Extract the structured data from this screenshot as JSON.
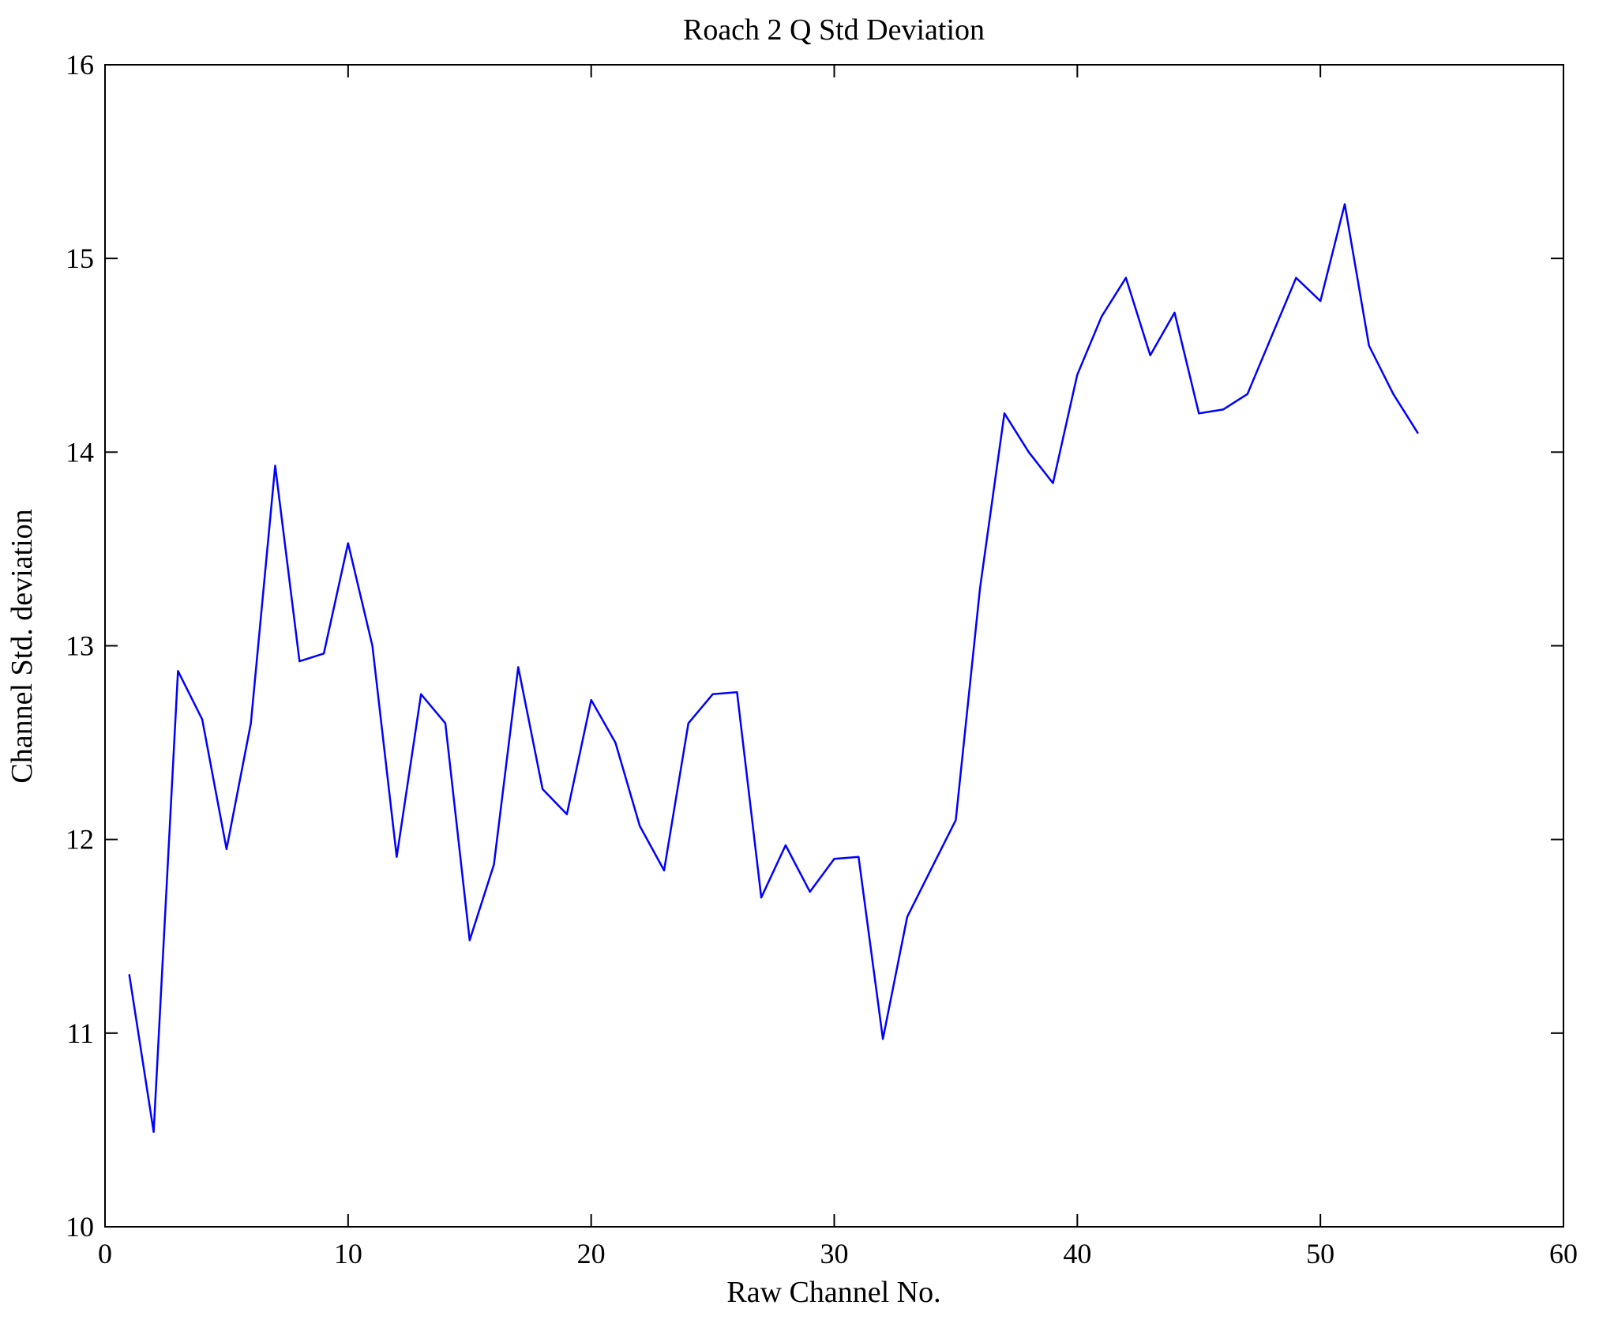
{
  "chart_data": {
    "type": "line",
    "title": "Roach 2 Q Std Deviation",
    "xlabel": "Raw Channel No.",
    "ylabel": "Channel Std. deviation",
    "xlim": [
      0,
      60
    ],
    "ylim": [
      10,
      16
    ],
    "xticks": [
      0,
      10,
      20,
      30,
      40,
      50,
      60
    ],
    "yticks": [
      10,
      11,
      12,
      13,
      14,
      15,
      16
    ],
    "grid": false,
    "legend": "none",
    "line_color": "#0000ff",
    "axis_color": "#000000",
    "series_name": "Channel Std. deviation",
    "x": [
      1,
      2,
      3,
      4,
      5,
      6,
      7,
      8,
      9,
      10,
      11,
      12,
      13,
      14,
      15,
      16,
      17,
      18,
      19,
      20,
      21,
      22,
      23,
      24,
      25,
      26,
      27,
      28,
      29,
      30,
      31,
      32,
      33,
      34,
      35,
      36,
      37,
      38,
      39,
      40,
      41,
      42,
      43,
      44,
      45,
      46,
      47,
      48,
      49,
      50,
      51,
      52,
      53,
      54
    ],
    "y": [
      11.3,
      10.49,
      12.87,
      12.62,
      11.95,
      12.6,
      13.93,
      12.92,
      12.96,
      13.53,
      13.0,
      11.91,
      12.75,
      12.6,
      11.48,
      11.87,
      12.89,
      12.26,
      12.13,
      12.72,
      12.5,
      12.07,
      11.84,
      12.6,
      12.75,
      12.76,
      11.7,
      11.97,
      11.73,
      11.9,
      11.91,
      10.97,
      11.6,
      11.85,
      12.1,
      13.3,
      14.2,
      14.0,
      13.84,
      14.4,
      14.7,
      14.9,
      14.5,
      14.72,
      14.2,
      14.22,
      14.3,
      14.6,
      14.9,
      14.78,
      15.28,
      14.55,
      14.3,
      14.1
    ]
  }
}
